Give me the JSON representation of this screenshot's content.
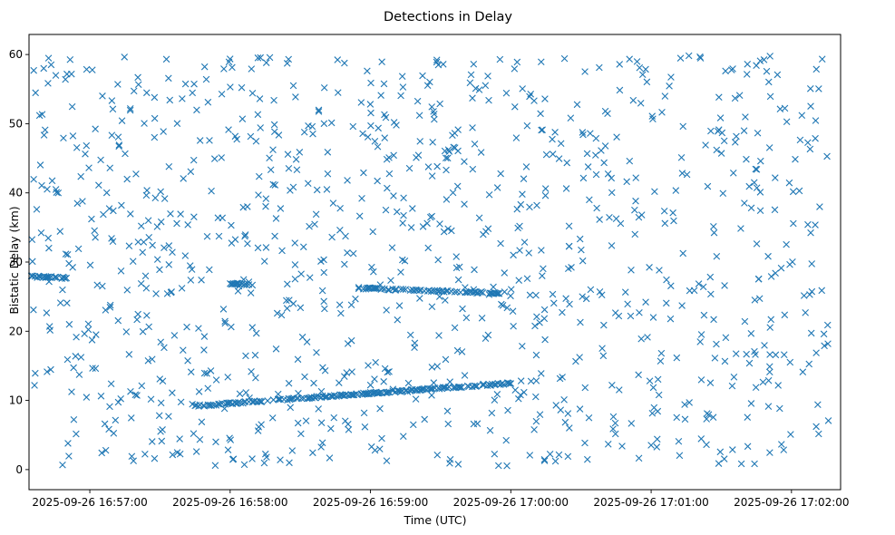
{
  "chart_data": {
    "type": "scatter",
    "title": "Detections in Delay",
    "xlabel": "Time (UTC)",
    "ylabel": "Bistatic Delay (km)",
    "marker": "x",
    "color": "#1f77b4",
    "grid": false,
    "xlim_seconds": [
      -26,
      321
    ],
    "ylim": [
      -2.9,
      62.9
    ],
    "x_ticks": [
      {
        "t": 0,
        "label": "2025-09-26 16:57:00"
      },
      {
        "t": 60,
        "label": "2025-09-26 16:58:00"
      },
      {
        "t": 120,
        "label": "2025-09-26 16:59:00"
      },
      {
        "t": 180,
        "label": "2025-09-26 17:00:00"
      },
      {
        "t": 240,
        "label": "2025-09-26 17:01:00"
      },
      {
        "t": 300,
        "label": "2025-09-26 17:02:00"
      }
    ],
    "y_ticks": [
      0,
      10,
      20,
      30,
      40,
      50,
      60
    ],
    "x_origin_utc": "2025-09-26 16:57:00",
    "x_units": "seconds after 16:57:00 UTC",
    "tracks": [
      {
        "name": "track-upper",
        "t_start": -25,
        "t_end": 175,
        "t_step": 0.5,
        "delay_start": 27.9,
        "delay_end": 25.5,
        "t_segments": [
          [
            -25,
            -10
          ],
          [
            60,
            70
          ],
          [
            115,
            175
          ]
        ]
      },
      {
        "name": "track-lower",
        "t_start": 45,
        "t_end": 180,
        "t_step": 0.5,
        "delay_start": 9.2,
        "delay_end": 12.5,
        "t_segments": [
          [
            45,
            180
          ]
        ]
      }
    ],
    "clutter": {
      "description": "uniformly distributed false detections",
      "count": 1050,
      "t_range": [
        -25,
        316
      ],
      "delay_range": [
        0.5,
        60
      ],
      "seed": 20250926
    }
  }
}
